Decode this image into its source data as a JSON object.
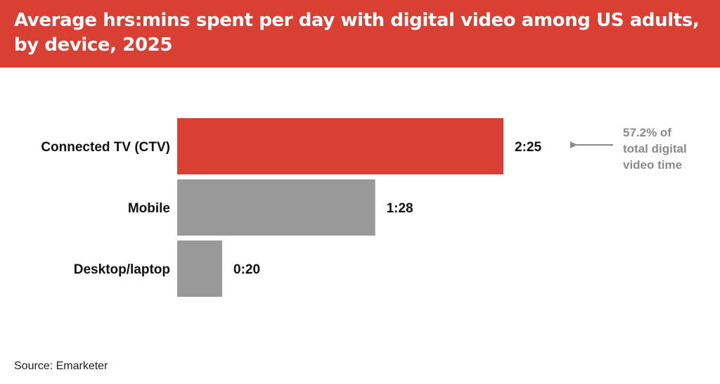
{
  "title": "Average hrs:mins spent per day with digital video among US adults, by device, 2025",
  "source": "Source: Emarketer",
  "annotation": {
    "lines": [
      "57.2% of",
      "total digital",
      "video time"
    ],
    "color": "#8a8a8a"
  },
  "colors": {
    "header": "#da3f33",
    "highlight_bar": "#da3f33",
    "default_bar": "#999999"
  },
  "chart_data": {
    "type": "bar",
    "orientation": "horizontal",
    "title": "Average hrs:mins spent per day with digital video among US adults, by device, 2025",
    "categories": [
      "Connected TV (CTV)",
      "Mobile",
      "Desktop/laptop"
    ],
    "values_minutes": [
      145,
      88,
      20
    ],
    "value_labels": [
      "2:25",
      "1:28",
      "0:20"
    ],
    "highlight_index": 0,
    "xlim": [
      0,
      145
    ],
    "grid": false,
    "legend": "none"
  }
}
